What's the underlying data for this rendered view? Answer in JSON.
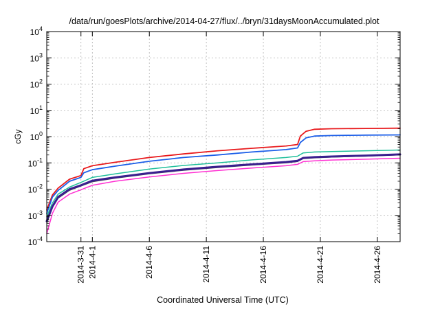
{
  "chart_data": {
    "type": "line",
    "title": "/data/run/goesPlots/archive/2014-04-27/flux/../bryn/31daysMoonAccumulated.plot",
    "xlabel": "Coordinated Universal Time (UTC)",
    "ylabel": "cGy",
    "yscale": "log",
    "grid": true,
    "legend": "none",
    "xlim": [
      "2014-03-28",
      "2014-04-28"
    ],
    "ylim": [
      0.0001,
      10000
    ],
    "x_ticks": [
      "2014-3-31",
      "2014-4-1",
      "2014-4-6",
      "2014-4-11",
      "2014-4-16",
      "2014-4-21",
      "2014-4-26"
    ],
    "y_ticks": [
      {
        "base": "10",
        "exp": "-4",
        "value": 0.0001
      },
      {
        "base": "10",
        "exp": "-3",
        "value": 0.001
      },
      {
        "base": "10",
        "exp": "-2",
        "value": 0.01
      },
      {
        "base": "10",
        "exp": "-1",
        "value": 0.1
      },
      {
        "base": "10",
        "exp": "0",
        "value": 1
      },
      {
        "base": "10",
        "exp": "1",
        "value": 10
      },
      {
        "base": "10",
        "exp": "2",
        "value": 100
      },
      {
        "base": "10",
        "exp": "3",
        "value": 1000
      },
      {
        "base": "10",
        "exp": "4",
        "value": 10000
      }
    ],
    "series": [
      {
        "color": "#e8191c",
        "width": 1.8,
        "points": [
          [
            "2014-03-28",
            0.0016
          ],
          [
            "2014-03-28T12:00",
            0.006
          ],
          [
            "2014-03-29",
            0.011
          ],
          [
            "2014-03-30",
            0.024
          ],
          [
            "2014-03-31",
            0.033
          ],
          [
            "2014-03-31T06:00",
            0.06
          ],
          [
            "2014-04-01",
            0.078
          ],
          [
            "2014-04-03",
            0.105
          ],
          [
            "2014-04-06",
            0.16
          ],
          [
            "2014-04-09",
            0.22
          ],
          [
            "2014-04-12",
            0.29
          ],
          [
            "2014-04-15",
            0.36
          ],
          [
            "2014-04-18",
            0.44
          ],
          [
            "2014-04-19",
            0.5
          ],
          [
            "2014-04-19T06:00",
            1.05
          ],
          [
            "2014-04-19T18:00",
            1.6
          ],
          [
            "2014-04-20T12:00",
            1.9
          ],
          [
            "2014-04-22",
            2.0
          ],
          [
            "2014-04-25",
            2.05
          ],
          [
            "2014-04-28",
            2.1
          ]
        ]
      },
      {
        "color": "#1b5ee8",
        "width": 1.8,
        "points": [
          [
            "2014-03-28",
            0.0012
          ],
          [
            "2014-03-28T12:00",
            0.005
          ],
          [
            "2014-03-29",
            0.009
          ],
          [
            "2014-03-30",
            0.02
          ],
          [
            "2014-03-31",
            0.028
          ],
          [
            "2014-03-31T06:00",
            0.042
          ],
          [
            "2014-04-01",
            0.055
          ],
          [
            "2014-04-03",
            0.075
          ],
          [
            "2014-04-06",
            0.115
          ],
          [
            "2014-04-09",
            0.16
          ],
          [
            "2014-04-12",
            0.2
          ],
          [
            "2014-04-15",
            0.26
          ],
          [
            "2014-04-18",
            0.32
          ],
          [
            "2014-04-19",
            0.37
          ],
          [
            "2014-04-19T06:00",
            0.6
          ],
          [
            "2014-04-19T18:00",
            0.9
          ],
          [
            "2014-04-20T12:00",
            1.05
          ],
          [
            "2014-04-22",
            1.1
          ],
          [
            "2014-04-25",
            1.14
          ],
          [
            "2014-04-28",
            1.16
          ]
        ]
      },
      {
        "color": "#1fbf9b",
        "width": 1.5,
        "points": [
          [
            "2014-03-28",
            0.0009
          ],
          [
            "2014-03-28T12:00",
            0.003
          ],
          [
            "2014-03-29",
            0.0065
          ],
          [
            "2014-03-30",
            0.012
          ],
          [
            "2014-03-31",
            0.018
          ],
          [
            "2014-04-01",
            0.028
          ],
          [
            "2014-04-03",
            0.038
          ],
          [
            "2014-04-06",
            0.058
          ],
          [
            "2014-04-09",
            0.08
          ],
          [
            "2014-04-12",
            0.1
          ],
          [
            "2014-04-15",
            0.13
          ],
          [
            "2014-04-18",
            0.16
          ],
          [
            "2014-04-19",
            0.18
          ],
          [
            "2014-04-19T12:00",
            0.24
          ],
          [
            "2014-04-20T12:00",
            0.26
          ],
          [
            "2014-04-22",
            0.27
          ],
          [
            "2014-04-25",
            0.29
          ],
          [
            "2014-04-28",
            0.31
          ]
        ]
      },
      {
        "color": "#4d4d4d",
        "width": 1.2,
        "points": [
          [
            "2014-03-28",
            0.0005
          ],
          [
            "2014-03-28T12:00",
            0.002
          ],
          [
            "2014-03-29",
            0.0045
          ],
          [
            "2014-03-30",
            0.009
          ],
          [
            "2014-03-31",
            0.013
          ],
          [
            "2014-04-01",
            0.019
          ],
          [
            "2014-04-03",
            0.026
          ],
          [
            "2014-04-06",
            0.038
          ],
          [
            "2014-04-09",
            0.052
          ],
          [
            "2014-04-12",
            0.066
          ],
          [
            "2014-04-15",
            0.082
          ],
          [
            "2014-04-18",
            0.1
          ],
          [
            "2014-04-19",
            0.112
          ],
          [
            "2014-04-19T12:00",
            0.145
          ],
          [
            "2014-04-20T12:00",
            0.155
          ],
          [
            "2014-04-22",
            0.165
          ],
          [
            "2014-04-25",
            0.18
          ],
          [
            "2014-04-28",
            0.2
          ]
        ]
      },
      {
        "color": "#3a1f8f",
        "width": 3.0,
        "points": [
          [
            "2014-03-28",
            0.0006
          ],
          [
            "2014-03-28T12:00",
            0.0022
          ],
          [
            "2014-03-29",
            0.005
          ],
          [
            "2014-03-30",
            0.01
          ],
          [
            "2014-03-31",
            0.014
          ],
          [
            "2014-04-01",
            0.021
          ],
          [
            "2014-04-03",
            0.028
          ],
          [
            "2014-04-06",
            0.041
          ],
          [
            "2014-04-09",
            0.056
          ],
          [
            "2014-04-12",
            0.071
          ],
          [
            "2014-04-15",
            0.088
          ],
          [
            "2014-04-18",
            0.108
          ],
          [
            "2014-04-19",
            0.12
          ],
          [
            "2014-04-19T12:00",
            0.155
          ],
          [
            "2014-04-20T12:00",
            0.165
          ],
          [
            "2014-04-22",
            0.175
          ],
          [
            "2014-04-25",
            0.19
          ],
          [
            "2014-04-28",
            0.21
          ]
        ]
      },
      {
        "color": "#ff30d2",
        "width": 1.5,
        "points": [
          [
            "2014-03-28",
            0.0002
          ],
          [
            "2014-03-28T12:00",
            0.0012
          ],
          [
            "2014-03-29",
            0.0032
          ],
          [
            "2014-03-30",
            0.0065
          ],
          [
            "2014-03-31",
            0.0095
          ],
          [
            "2014-04-01",
            0.014
          ],
          [
            "2014-04-03",
            0.02
          ],
          [
            "2014-04-06",
            0.029
          ],
          [
            "2014-04-09",
            0.04
          ],
          [
            "2014-04-12",
            0.051
          ],
          [
            "2014-04-15",
            0.064
          ],
          [
            "2014-04-18",
            0.078
          ],
          [
            "2014-04-19",
            0.088
          ],
          [
            "2014-04-19T12:00",
            0.112
          ],
          [
            "2014-04-20T12:00",
            0.12
          ],
          [
            "2014-04-22",
            0.128
          ],
          [
            "2014-04-25",
            0.138
          ],
          [
            "2014-04-28",
            0.15
          ]
        ]
      }
    ]
  }
}
